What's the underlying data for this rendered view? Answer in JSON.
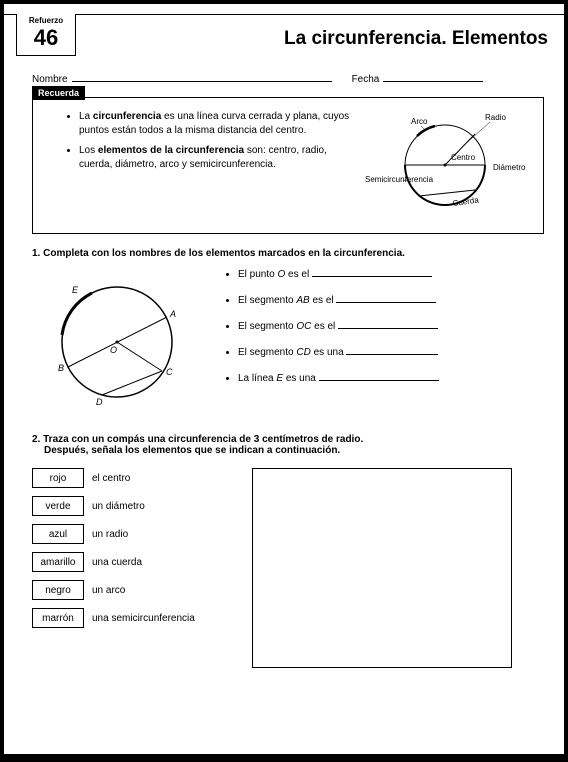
{
  "badge_label": "Refuerzo",
  "badge_number": "46",
  "title": "La circunferencia. Elementos",
  "form": {
    "nombre": "Nombre",
    "fecha": "Fecha"
  },
  "recuerda": {
    "tab": "Recuerda",
    "bullets": [
      "La <b>circunferencia</b> es una línea curva cerrada y plana, cuyos puntos están todos a la misma distancia del centro.",
      "Los <b>elementos de la circunferencia</b> son: centro, radio, cuerda, diámetro, arco y semicircunferencia."
    ],
    "labels": {
      "arco": "Arco",
      "radio": "Radio",
      "centro": "Centro",
      "semi": "Semicircunferencia",
      "diametro": "Diámetro",
      "cuerda": "Cuerda"
    }
  },
  "q1": {
    "num": "1.",
    "text": "Completa con los nombres de los elementos marcados en la circunferencia.",
    "pts": {
      "E": "E",
      "A": "A",
      "O": "O",
      "B": "B",
      "C": "C",
      "D": "D"
    },
    "items": [
      "El punto <i>O</i> es el",
      "El segmento <i>AB</i> es el",
      "El segmento <i>OC</i> es el",
      "El segmento <i>CD</i> es una",
      "La línea <i>E</i> es una"
    ]
  },
  "q2": {
    "num": "2.",
    "text1": "Traza con un compás una circunferencia de 3 centímetros de radio.",
    "text2": "Después, señala los elementos que se indican a continuación.",
    "rows": [
      {
        "color": "rojo",
        "label": "el centro"
      },
      {
        "color": "verde",
        "label": "un diámetro"
      },
      {
        "color": "azul",
        "label": "un radio"
      },
      {
        "color": "amarillo",
        "label": "una cuerda"
      },
      {
        "color": "negro",
        "label": "un arco"
      },
      {
        "color": "marrón",
        "label": "una semicircunferencia"
      }
    ]
  }
}
